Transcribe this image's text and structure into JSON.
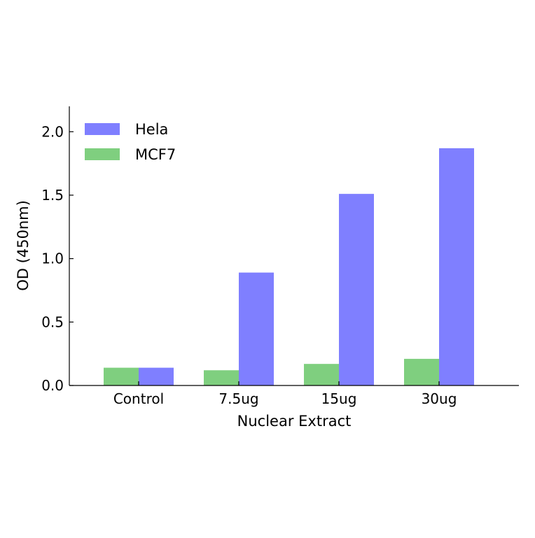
{
  "chart_data": {
    "type": "bar",
    "xlabel": "Nuclear Extract",
    "ylabel": "OD (450nm)",
    "categories": [
      "Control",
      "7.5ug",
      "15ug",
      "30ug"
    ],
    "ylim": [
      0,
      2.2
    ],
    "yticks": [
      "0.0",
      "0.5",
      "1.0",
      "1.5",
      "2.0"
    ],
    "series": [
      {
        "name": "MCF7",
        "color": "#7fcf7f",
        "values": [
          0.14,
          0.12,
          0.17,
          0.21
        ]
      },
      {
        "name": "Hela",
        "color": "#7f7fff",
        "values": [
          0.14,
          0.89,
          1.51,
          1.87
        ]
      }
    ],
    "legend": {
      "placement": "top-left",
      "order": [
        "Hela",
        "MCF7"
      ]
    },
    "grid": false
  }
}
